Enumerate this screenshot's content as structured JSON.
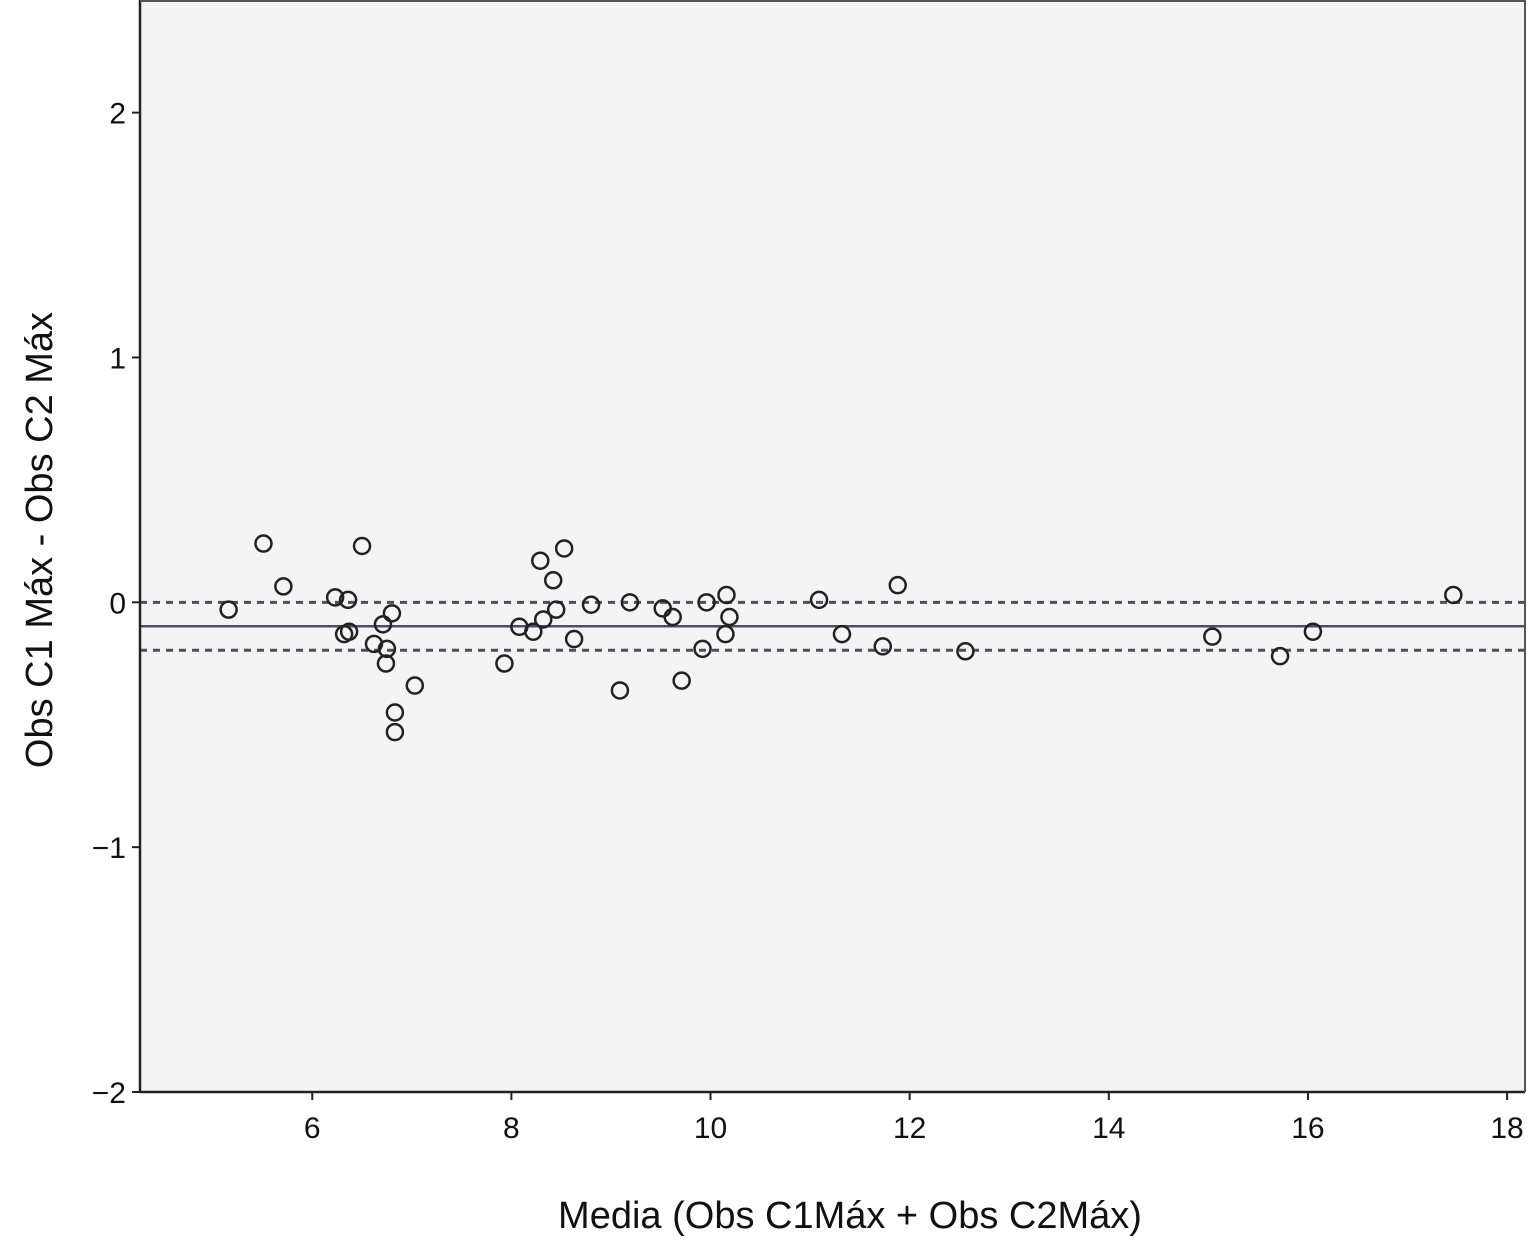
{
  "chart_data": {
    "type": "scatter",
    "title": "",
    "xlabel": "Media (Obs C1Máx + Obs C2Máx)",
    "ylabel": "Obs C1 Máx - Obs C2 Máx",
    "xlim": [
      4.27,
      18.18
    ],
    "ylim": [
      -2,
      2.46
    ],
    "xticks": [
      6,
      8,
      10,
      12,
      14,
      16,
      18
    ],
    "yticks": [
      2,
      1,
      0,
      -1,
      -2
    ],
    "ytick_labels": [
      "2",
      "1",
      "0",
      "−1",
      "−2"
    ],
    "xtick_labels": [
      "6",
      "8",
      "10",
      "12",
      "14",
      "16",
      "18"
    ],
    "reference_lines": {
      "mean": -0.098,
      "upper_limit": 0.0,
      "lower_limit": -0.196
    },
    "colors": {
      "background": "#f4f4f4",
      "marker": "#222222",
      "line": "#4a5060"
    },
    "points": [
      [
        5.16,
        -0.03
      ],
      [
        5.51,
        0.24
      ],
      [
        5.71,
        0.065
      ],
      [
        6.23,
        0.02
      ],
      [
        6.36,
        0.01
      ],
      [
        6.32,
        -0.13
      ],
      [
        6.37,
        -0.12
      ],
      [
        6.5,
        0.23
      ],
      [
        6.62,
        -0.17
      ],
      [
        6.71,
        -0.09
      ],
      [
        6.75,
        -0.19
      ],
      [
        6.74,
        -0.25
      ],
      [
        6.8,
        -0.045
      ],
      [
        6.83,
        -0.45
      ],
      [
        6.83,
        -0.53
      ],
      [
        7.03,
        -0.34
      ],
      [
        7.93,
        -0.25
      ],
      [
        8.08,
        -0.1
      ],
      [
        8.22,
        -0.12
      ],
      [
        8.29,
        0.17
      ],
      [
        8.32,
        -0.07
      ],
      [
        8.42,
        0.09
      ],
      [
        8.45,
        -0.03
      ],
      [
        8.53,
        0.22
      ],
      [
        8.63,
        -0.15
      ],
      [
        8.8,
        -0.01
      ],
      [
        9.09,
        -0.36
      ],
      [
        9.19,
        0.0
      ],
      [
        9.52,
        -0.025
      ],
      [
        9.62,
        -0.06
      ],
      [
        9.71,
        -0.32
      ],
      [
        9.92,
        -0.19
      ],
      [
        9.96,
        0.0
      ],
      [
        10.16,
        0.03
      ],
      [
        10.19,
        -0.06
      ],
      [
        10.15,
        -0.13
      ],
      [
        11.09,
        0.01
      ],
      [
        11.32,
        -0.13
      ],
      [
        11.73,
        -0.18
      ],
      [
        11.88,
        0.07
      ],
      [
        12.56,
        -0.2
      ],
      [
        15.04,
        -0.14
      ],
      [
        15.72,
        -0.22
      ],
      [
        16.05,
        -0.12
      ],
      [
        17.46,
        0.03
      ]
    ]
  }
}
